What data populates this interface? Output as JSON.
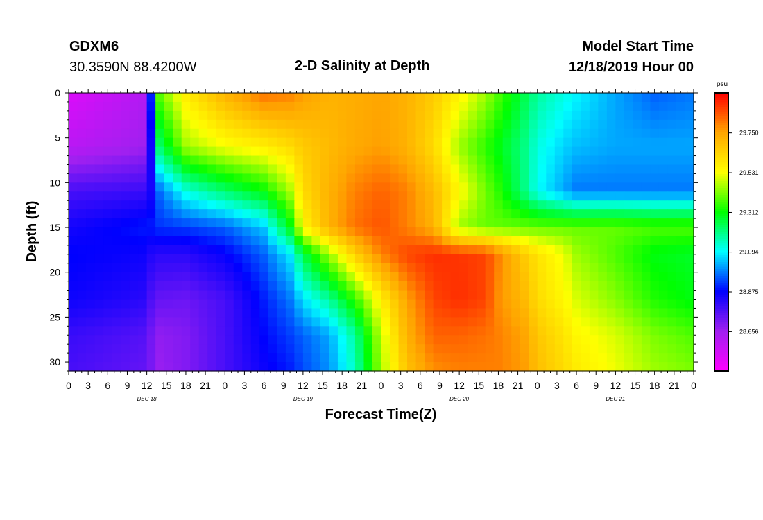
{
  "header": {
    "station": "GDXM6",
    "coords": "30.3590N 88.4200W",
    "title": "2-D Salinity at Depth",
    "start_label": "Model Start Time",
    "start_value": "12/18/2019 Hour 00"
  },
  "chart_data": {
    "type": "heatmap",
    "title": "2-D Salinity at Depth",
    "xlabel": "Forecast Time(Z)",
    "ylabel": "Depth (ft)",
    "x_tick_labels": [
      "0",
      "3",
      "6",
      "9",
      "12",
      "15",
      "18",
      "21",
      "0",
      "3",
      "6",
      "9",
      "12",
      "15",
      "18",
      "21",
      "0",
      "3",
      "6",
      "9",
      "12",
      "15",
      "18",
      "21",
      "0",
      "3",
      "6",
      "9",
      "12",
      "15",
      "18",
      "21",
      "0"
    ],
    "day_labels": [
      "DEC 18",
      "DEC 19",
      "DEC 20",
      "DEC 21"
    ],
    "y_ticks": [
      0,
      5,
      10,
      15,
      20,
      25,
      30
    ],
    "ylim": [
      0,
      31
    ],
    "xlim_hours": [
      0,
      96
    ],
    "colorbar": {
      "unit": "psu",
      "range": [
        28.44,
        29.97
      ],
      "tick_values": [
        "28.656",
        "28.875",
        "29.094",
        "29.312",
        "29.531",
        "29.750"
      ],
      "colors": [
        "#ff00ff",
        "#a020f0",
        "#0000ff",
        "#00ffff",
        "#00ff00",
        "#ffff00",
        "#ffa500",
        "#ff0000"
      ]
    },
    "grid": false,
    "depth_levels_ft": [
      0,
      6,
      11,
      15,
      18,
      23,
      27,
      31
    ],
    "time_nodes_hours": [
      0,
      12,
      13,
      14,
      18,
      24,
      30,
      34,
      36,
      40,
      44,
      48,
      52,
      56,
      60,
      64,
      66,
      70,
      72,
      76,
      78,
      84,
      90,
      96
    ],
    "salinity_psu": [
      [
        28.52,
        28.62,
        29.05,
        29.4,
        29.58,
        29.72,
        29.82,
        29.8,
        29.76,
        29.72,
        29.73,
        29.75,
        29.72,
        29.66,
        29.56,
        29.45,
        29.38,
        29.25,
        29.18,
        29.12,
        29.09,
        29.02,
        28.96,
        28.98
      ],
      [
        28.6,
        28.66,
        28.95,
        29.23,
        29.45,
        29.53,
        29.57,
        29.62,
        29.66,
        29.7,
        29.74,
        29.76,
        29.72,
        29.62,
        29.45,
        29.35,
        29.3,
        29.2,
        29.12,
        29.06,
        29.04,
        29.02,
        29.02,
        29.02
      ],
      [
        28.78,
        28.8,
        28.87,
        28.97,
        29.12,
        29.22,
        29.31,
        29.46,
        29.62,
        29.72,
        29.8,
        29.84,
        29.8,
        29.7,
        29.55,
        29.41,
        29.35,
        29.2,
        29.1,
        29.02,
        28.98,
        28.98,
        28.98,
        28.98
      ],
      [
        28.85,
        28.9,
        28.9,
        28.92,
        28.93,
        28.96,
        29.05,
        29.3,
        29.55,
        29.72,
        29.82,
        29.86,
        29.8,
        29.72,
        29.45,
        29.4,
        29.4,
        29.4,
        29.4,
        29.4,
        29.4,
        29.4,
        29.38,
        29.38
      ],
      [
        28.88,
        28.86,
        28.82,
        28.82,
        28.82,
        28.87,
        28.96,
        29.08,
        29.25,
        29.45,
        29.65,
        29.8,
        29.88,
        29.91,
        29.9,
        29.88,
        29.8,
        29.66,
        29.6,
        29.52,
        29.45,
        29.38,
        29.3,
        29.28
      ],
      [
        28.86,
        28.82,
        28.75,
        28.74,
        28.73,
        28.78,
        28.9,
        28.98,
        29.07,
        29.18,
        29.35,
        29.57,
        29.75,
        29.88,
        29.91,
        29.88,
        29.78,
        29.7,
        29.62,
        29.55,
        29.5,
        29.43,
        29.34,
        29.3
      ],
      [
        28.8,
        28.76,
        28.7,
        28.68,
        28.7,
        28.78,
        28.88,
        28.93,
        28.96,
        29.02,
        29.18,
        29.48,
        29.72,
        29.84,
        29.84,
        29.82,
        29.8,
        29.75,
        29.67,
        29.6,
        29.55,
        29.5,
        29.42,
        29.38
      ],
      [
        28.78,
        28.74,
        28.7,
        28.67,
        28.7,
        28.78,
        28.86,
        28.9,
        28.94,
        29.0,
        29.15,
        29.45,
        29.68,
        29.78,
        29.8,
        29.8,
        29.8,
        29.76,
        29.69,
        29.62,
        29.58,
        29.52,
        29.45,
        29.42
      ]
    ]
  }
}
